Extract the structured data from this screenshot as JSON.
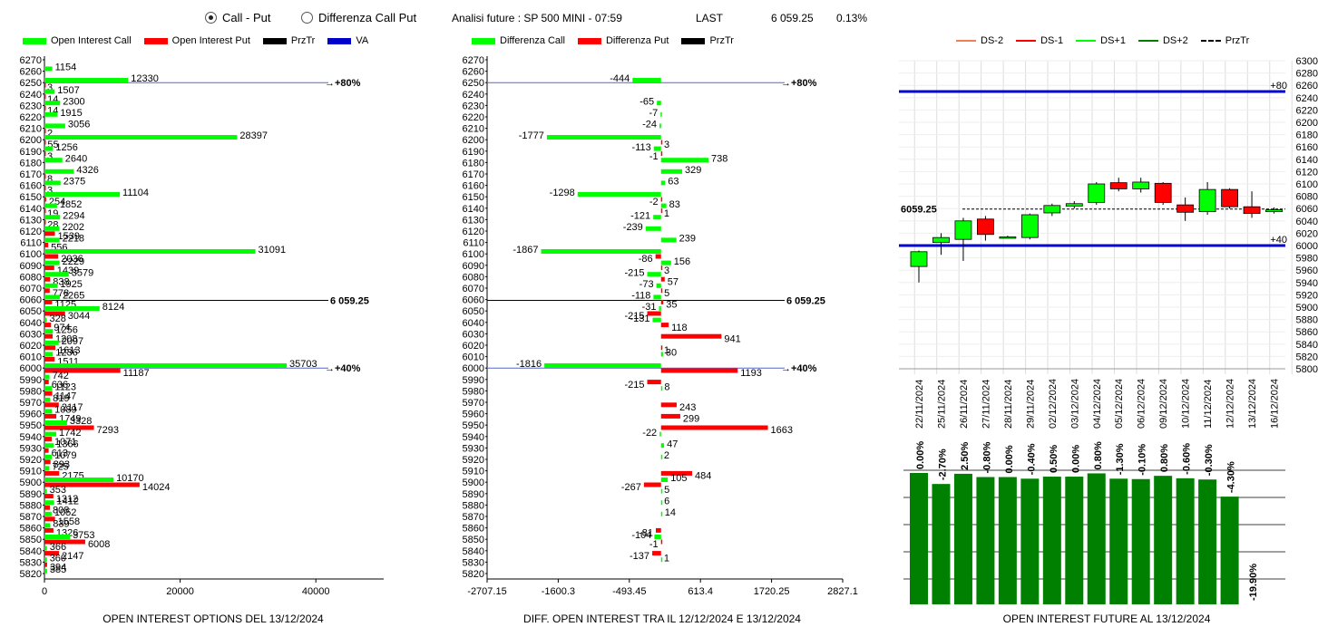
{
  "controls": {
    "radio_call_put": "Call - Put",
    "radio_diff": "Differenza Call Put",
    "analysis_title": "Analisi future : SP 500 MINI - 07:59",
    "last_label": "LAST",
    "last_value": "6 059.25",
    "last_change": "0.13%"
  },
  "colors": {
    "green": "#00ff00",
    "red": "#ff0000",
    "blue": "#0000cc",
    "dark_green": "#008000",
    "black": "#000000"
  },
  "legend_left": [
    "Open Interest Call",
    "Open Interest Put",
    "PrzTr",
    "VA"
  ],
  "legend_mid": [
    "Differenza Call",
    "Differenza Put",
    "PrzTr"
  ],
  "legend_right": [
    "DS-2",
    "DS-1",
    "DS+1",
    "DS+2",
    "PrzTr"
  ],
  "footers": {
    "left": "OPEN INTEREST OPTIONS DEL 13/12/2024",
    "mid": "DIFF. OPEN INTEREST TRA IL 12/12/2024 E 13/12/2024",
    "right": "OPEN INTEREST FUTURE AL 13/12/2024"
  },
  "chart_data": [
    {
      "type": "bar",
      "orientation": "horizontal",
      "strikes": [
        6270,
        6260,
        6250,
        6240,
        6230,
        6220,
        6210,
        6200,
        6190,
        6180,
        6170,
        6160,
        6150,
        6140,
        6130,
        6120,
        6110,
        6100,
        6090,
        6080,
        6070,
        6060,
        6050,
        6040,
        6030,
        6020,
        6010,
        6000,
        5990,
        5980,
        5970,
        5960,
        5950,
        5940,
        5930,
        5920,
        5910,
        5900,
        5890,
        5880,
        5870,
        5860,
        5850,
        5840,
        5830,
        5820
      ],
      "series": [
        {
          "name": "Open Interest Call",
          "values": [
            null,
            1154,
            12330,
            1507,
            2300,
            1915,
            3056,
            28397,
            1256,
            2640,
            4326,
            2375,
            11104,
            1852,
            2294,
            2202,
            2218,
            31091,
            2229,
            3579,
            1925,
            2265,
            8124,
            328,
            1256,
            2097,
            1236,
            35703,
            742,
            1123,
            819,
            1089,
            3328,
            1742,
            1366,
            1079,
            725,
            10170,
            353,
            1412,
            1052,
            839,
            3753,
            366,
            360,
            385
          ]
        },
        {
          "name": "Open Interest Put",
          "values": [
            null,
            null,
            3,
            14,
            14,
            null,
            2,
            55,
            3,
            null,
            8,
            3,
            254,
            19,
            28,
            1539,
            556,
            2036,
            1439,
            838,
            778,
            1125,
            3044,
            974,
            1208,
            1613,
            1511,
            11187,
            636,
            1147,
            2117,
            1749,
            7293,
            1071,
            613,
            893,
            2175,
            14024,
            1312,
            808,
            1558,
            1326,
            6008,
            2147,
            394,
            null
          ]
        }
      ],
      "markers": [
        {
          "strike": 6250,
          "label": "+80%"
        },
        {
          "strike": 6059.25,
          "label": "6 059.25"
        },
        {
          "strike": 6000,
          "label": "+40%"
        }
      ],
      "xticks": [
        0,
        20000,
        40000
      ],
      "xlim": [
        0,
        50000
      ]
    },
    {
      "type": "bar",
      "orientation": "horizontal",
      "strikes": [
        6270,
        6260,
        6250,
        6240,
        6230,
        6220,
        6210,
        6200,
        6190,
        6180,
        6170,
        6160,
        6150,
        6140,
        6130,
        6120,
        6110,
        6100,
        6090,
        6080,
        6070,
        6060,
        6050,
        6040,
        6030,
        6020,
        6010,
        6000,
        5990,
        5980,
        5970,
        5960,
        5950,
        5940,
        5930,
        5920,
        5910,
        5900,
        5890,
        5880,
        5870,
        5860,
        5850,
        5840,
        5830,
        5820
      ],
      "series": [
        {
          "name": "Differenza Call",
          "values": [
            null,
            null,
            -444,
            null,
            -65,
            -7,
            -24,
            -1777,
            -113,
            738,
            329,
            63,
            -1298,
            83,
            -121,
            -239,
            239,
            -1867,
            156,
            -215,
            -73,
            -118,
            -31,
            -131,
            null,
            null,
            30,
            -1816,
            null,
            8,
            null,
            null,
            null,
            -22,
            47,
            2,
            null,
            105,
            5,
            6,
            14,
            null,
            -104,
            null,
            1,
            null
          ]
        },
        {
          "name": "Differenza Put",
          "values": [
            null,
            null,
            null,
            null,
            null,
            null,
            null,
            3,
            -1,
            null,
            null,
            null,
            -2,
            1,
            null,
            null,
            null,
            -86,
            3,
            57,
            5,
            35,
            -215,
            118,
            941,
            1,
            null,
            1193,
            -215,
            null,
            243,
            299,
            1663,
            null,
            null,
            null,
            484,
            -267,
            null,
            null,
            null,
            -81,
            -1,
            -137,
            null,
            null
          ]
        }
      ],
      "markers": [
        {
          "strike": 6250,
          "label": "+80%"
        },
        {
          "strike": 6059.25,
          "label": "6 059.25"
        },
        {
          "strike": 6000,
          "label": "+40%"
        }
      ],
      "xticks": [
        -2707.15,
        -1600.3,
        -493.45,
        613.4,
        1720.25,
        2827.1
      ],
      "xlim": [
        -2707.15,
        2827.1
      ]
    },
    {
      "type": "candlestick",
      "dates": [
        "22/11/2024",
        "25/11/2024",
        "26/11/2024",
        "27/11/2024",
        "28/11/2024",
        "29/11/2024",
        "02/12/2024",
        "03/12/2024",
        "04/12/2024",
        "05/12/2024",
        "06/12/2024",
        "09/12/2024",
        "10/12/2024",
        "11/12/2024",
        "12/12/2024",
        "13/12/2024",
        "16/12/2024"
      ],
      "candles": [
        {
          "open": 5966,
          "close": 5990,
          "high": 5992,
          "low": 5940
        },
        {
          "open": 6005,
          "close": 6013,
          "high": 6020,
          "low": 5985
        },
        {
          "open": 6010,
          "close": 6040,
          "high": 6045,
          "low": 5975
        },
        {
          "open": 6043,
          "close": 6018,
          "high": 6048,
          "low": 6008
        },
        {
          "open": 6013,
          "close": 6014,
          "high": 6016,
          "low": 6012
        },
        {
          "open": 6013,
          "close": 6050,
          "high": 6052,
          "low": 6010
        },
        {
          "open": 6053,
          "close": 6065,
          "high": 6068,
          "low": 6048
        },
        {
          "open": 6064,
          "close": 6068,
          "high": 6072,
          "low": 6060
        },
        {
          "open": 6070,
          "close": 6100,
          "high": 6103,
          "low": 6066
        },
        {
          "open": 6102,
          "close": 6092,
          "high": 6110,
          "low": 6088
        },
        {
          "open": 6092,
          "close": 6103,
          "high": 6110,
          "low": 6086
        },
        {
          "open": 6101,
          "close": 6070,
          "high": 6103,
          "low": 6066
        },
        {
          "open": 6066,
          "close": 6054,
          "high": 6078,
          "low": 6040
        },
        {
          "open": 6055,
          "close": 6091,
          "high": 6103,
          "low": 6050
        },
        {
          "open": 6091,
          "close": 6063,
          "high": 6093,
          "low": 6060
        },
        {
          "open": 6063,
          "close": 6052,
          "high": 6088,
          "low": 6045
        },
        {
          "open": 6055,
          "close": 6058,
          "high": 6062,
          "low": 6052
        }
      ],
      "levels": [
        {
          "value": 6250,
          "label": "+80"
        },
        {
          "value": 6000,
          "label": "+40"
        },
        {
          "value": 6059.25,
          "label": "6059.25"
        }
      ],
      "yticks": [
        5800,
        5820,
        5840,
        5860,
        5880,
        5900,
        5920,
        5940,
        5960,
        5980,
        6000,
        6020,
        6040,
        6060,
        6080,
        6100,
        6120,
        6140,
        6160,
        6180,
        6200,
        6220,
        6240,
        6260,
        6280,
        6300
      ],
      "ylim": [
        5800,
        6300
      ]
    },
    {
      "type": "bar",
      "categories": [
        "22/11/2024",
        "25/11/2024",
        "26/11/2024",
        "27/11/2024",
        "28/11/2024",
        "29/11/2024",
        "02/12/2024",
        "03/12/2024",
        "04/12/2024",
        "05/12/2024",
        "06/12/2024",
        "09/12/2024",
        "10/12/2024",
        "11/12/2024",
        "12/12/2024",
        "13/12/2024",
        "16/12/2024"
      ],
      "value_labels": [
        "0.00%",
        "-2.70%",
        "2.50%",
        "-0.80%",
        "0.00%",
        "-0.40%",
        "0.50%",
        "0.00%",
        "0.80%",
        "-1.30%",
        "-0.10%",
        "0.80%",
        "-0.60%",
        "-0.30%",
        "-4.30%",
        "-19.90%",
        ""
      ],
      "relative_heights": [
        1.0,
        0.973,
        0.998,
        0.99,
        0.99,
        0.986,
        0.991,
        0.991,
        0.999,
        0.986,
        0.985,
        0.993,
        0.987,
        0.984,
        0.942,
        0.0,
        null
      ]
    }
  ]
}
